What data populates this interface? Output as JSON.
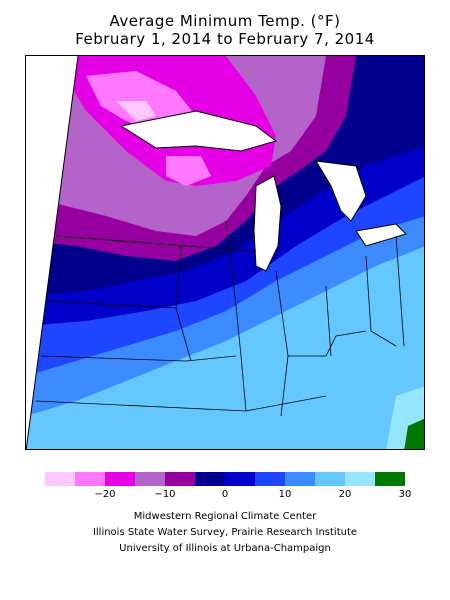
{
  "title": {
    "line1": "Average Minimum Temp. (°F)",
    "line2": "February 1, 2014 to February 7, 2014"
  },
  "legend": {
    "colors": [
      "#ffc8ff",
      "#ff78ff",
      "#e600e6",
      "#b464c8",
      "#9600a0",
      "#00008c",
      "#0000c8",
      "#1e46ff",
      "#3c8cff",
      "#64c8ff",
      "#96e6ff",
      "#007800"
    ],
    "ticks": [
      {
        "label": "−20",
        "pos": 2
      },
      {
        "label": "−10",
        "pos": 4
      },
      {
        "label": "0",
        "pos": 6
      },
      {
        "label": "10",
        "pos": 8
      },
      {
        "label": "20",
        "pos": 10
      },
      {
        "label": "30",
        "pos": 12
      }
    ]
  },
  "credits": {
    "line1": "Midwestern Regional Climate Center",
    "line2": "Illinois State Water Survey, Prairie Research Institute",
    "line3": "University of Illinois at Urbana-Champaign"
  }
}
